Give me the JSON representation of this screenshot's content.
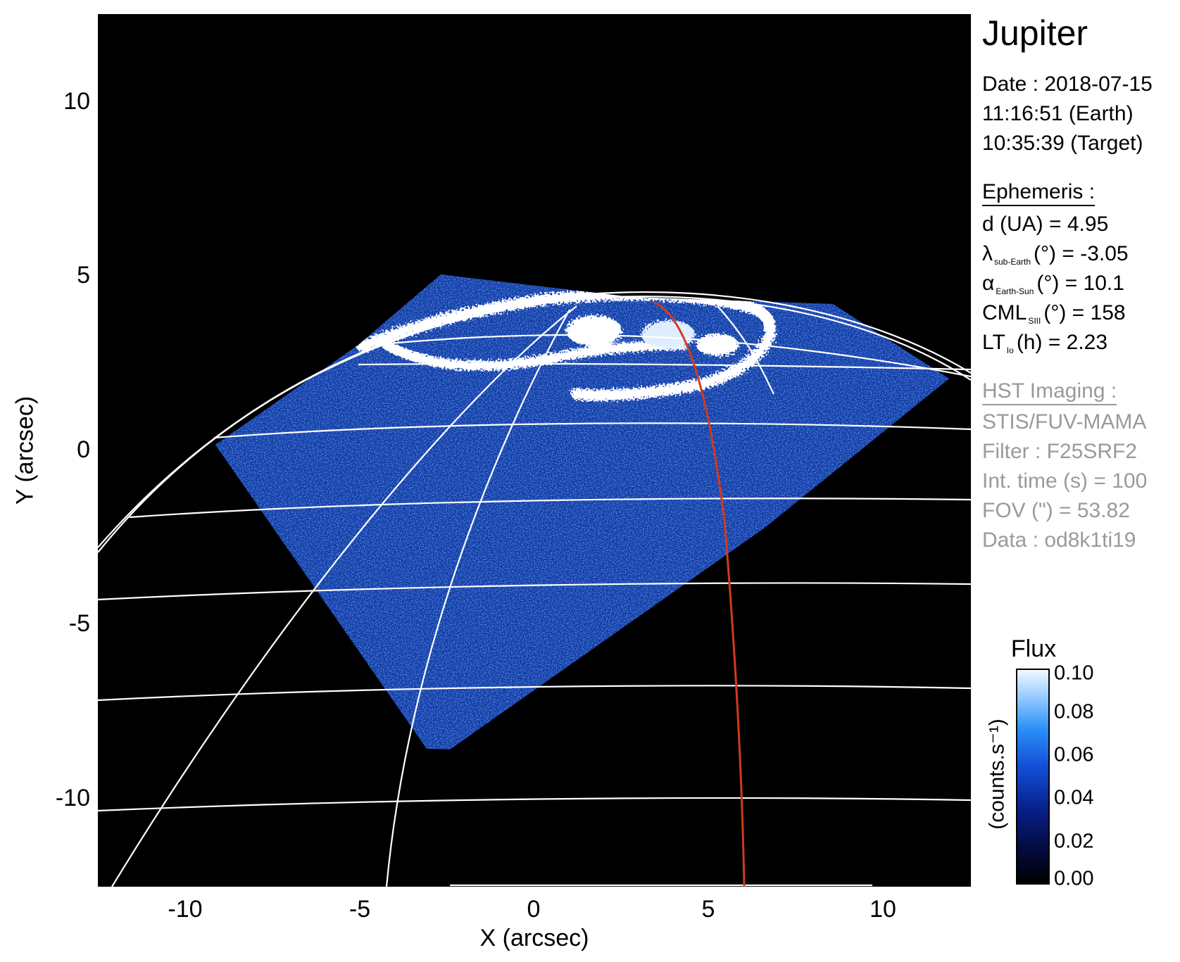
{
  "planet": "Jupiter",
  "observation": {
    "date": "Date : 2018-07-15",
    "earth_time": "11:16:51 (Earth)",
    "target_time": "10:35:39 (Target)"
  },
  "ephemeris": {
    "heading": "Ephemeris :",
    "distance": "d (UA)    = 4.95",
    "lambda_symbol": "λ",
    "lambda_sub": "sub-Earth",
    "lambda_value": "(°) = -3.05",
    "alpha_symbol": "α",
    "alpha_sub": "Earth-Sun",
    "alpha_value": "(°) = 10.1",
    "cml_symbol": "CML",
    "cml_sub": "SIII",
    "cml_value": "(°) = 158",
    "lt_symbol": "LT",
    "lt_sub": "Io",
    "lt_value": "(h) = 2.23"
  },
  "imaging": {
    "heading": "HST Imaging :",
    "instrument": "STIS/FUV-MAMA",
    "filter": "Filter : F25SRF2",
    "int_time": "Int. time (s) = 100",
    "fov": "FOV (\") = 53.82",
    "data_id": "Data : od8k1ti19"
  },
  "axes": {
    "xlabel": "X (arcsec)",
    "ylabel": "Y (arcsec)",
    "x_ticks": [
      "-10",
      "-5",
      "0",
      "5",
      "10"
    ],
    "y_ticks": [
      "10",
      "5",
      "0",
      "-5",
      "-10"
    ],
    "x_range": [
      -12.5,
      12.5
    ],
    "y_range": [
      -12.5,
      12.5
    ]
  },
  "colorbar": {
    "title": "Flux",
    "unit": "(counts.s⁻¹)",
    "ticks": [
      "0.10",
      "0.08",
      "0.06",
      "0.04",
      "0.02",
      "0.00"
    ],
    "range": [
      0.0,
      0.1
    ]
  },
  "colors": {
    "background": "#000000",
    "emission": "#1d5fe0",
    "aurora": "#ffffff",
    "grid": "#ffffff",
    "cml_meridian": "#d23a1e",
    "imaging_text": "#9a9a9a"
  }
}
